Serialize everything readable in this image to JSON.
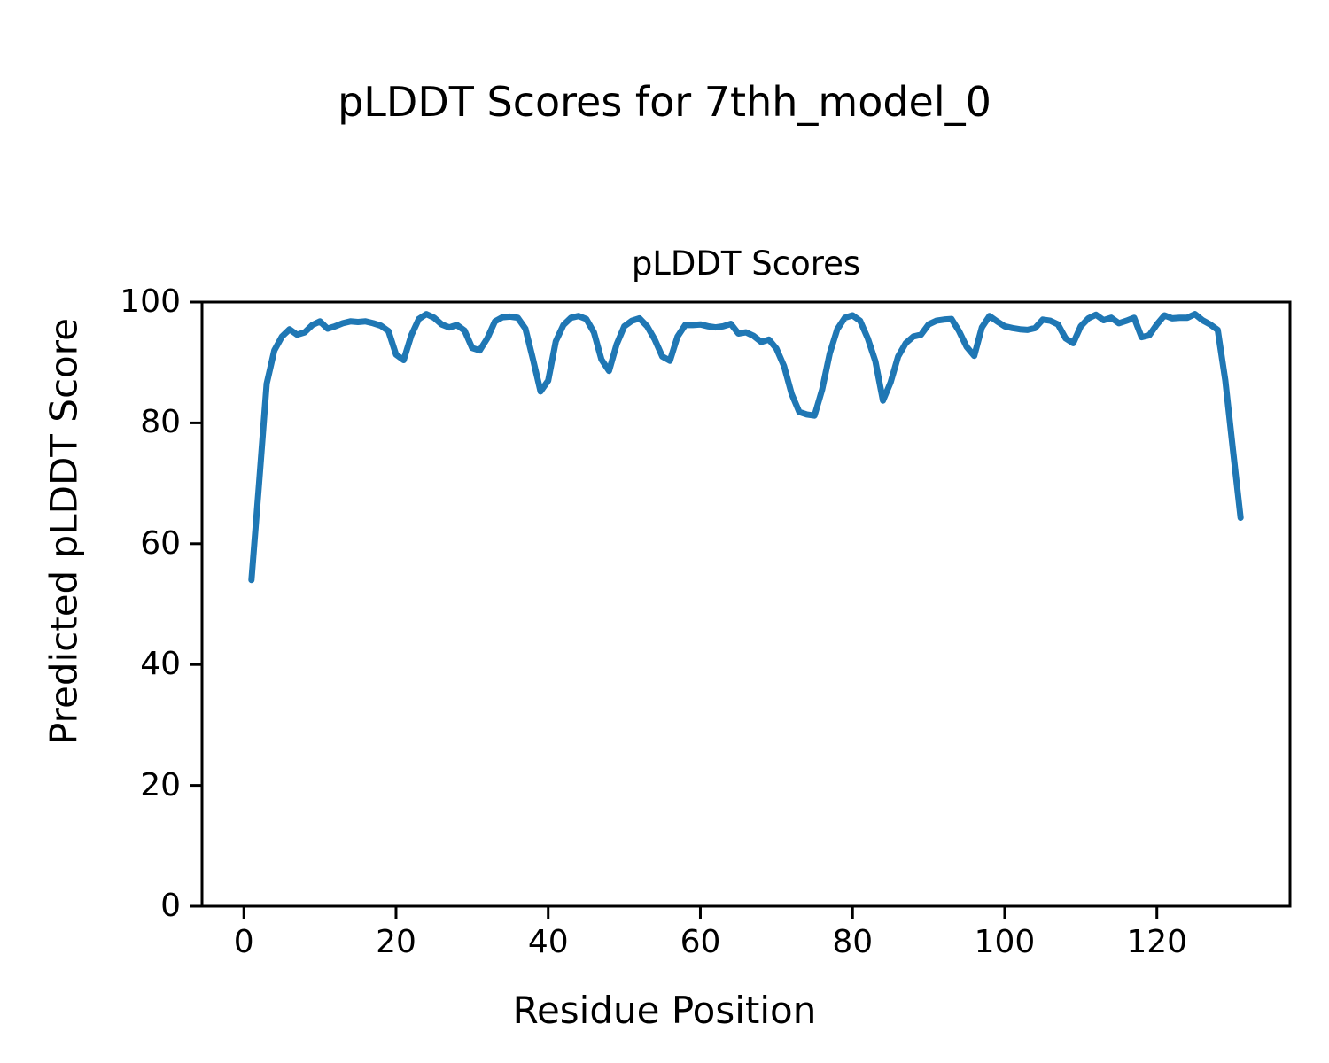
{
  "figure": {
    "title": "pLDDT Scores for 7thh_model_0"
  },
  "chart_data": {
    "type": "line",
    "title": "pLDDT Scores",
    "xlabel": "Residue Position",
    "ylabel": "Predicted pLDDT Score",
    "xlim": [
      -5.5,
      137.5
    ],
    "ylim": [
      0,
      100
    ],
    "xticks": [
      0,
      20,
      40,
      60,
      80,
      100,
      120
    ],
    "yticks": [
      0,
      20,
      40,
      60,
      80,
      100
    ],
    "grid": false,
    "legend": null,
    "line_color": "#1f77b4",
    "x": [
      1,
      2,
      3,
      4,
      5,
      6,
      7,
      8,
      9,
      10,
      11,
      12,
      13,
      14,
      15,
      16,
      17,
      18,
      19,
      20,
      21,
      22,
      23,
      24,
      25,
      26,
      27,
      28,
      29,
      30,
      31,
      32,
      33,
      34,
      35,
      36,
      37,
      38,
      39,
      40,
      41,
      42,
      43,
      44,
      45,
      46,
      47,
      48,
      49,
      50,
      51,
      52,
      53,
      54,
      55,
      56,
      57,
      58,
      59,
      60,
      61,
      62,
      63,
      64,
      65,
      66,
      67,
      68,
      69,
      70,
      71,
      72,
      73,
      74,
      75,
      76,
      77,
      78,
      79,
      80,
      81,
      82,
      83,
      84,
      85,
      86,
      87,
      88,
      89,
      90,
      91,
      92,
      93,
      94,
      95,
      96,
      97,
      98,
      99,
      100,
      101,
      102,
      103,
      104,
      105,
      106,
      107,
      108,
      109,
      110,
      111,
      112,
      113,
      114,
      115,
      116,
      117,
      118,
      119,
      120,
      121,
      122,
      123,
      124,
      125,
      126,
      127,
      128,
      129,
      130,
      131
    ],
    "values": [
      54.0,
      70.0,
      86.5,
      92.0,
      94.3,
      95.5,
      94.6,
      95.0,
      96.2,
      96.8,
      95.6,
      96.0,
      96.5,
      96.8,
      96.7,
      96.8,
      96.5,
      96.1,
      95.2,
      91.3,
      90.4,
      94.5,
      97.2,
      98.0,
      97.4,
      96.3,
      95.8,
      96.2,
      95.3,
      92.4,
      92.0,
      94.0,
      96.8,
      97.5,
      97.6,
      97.4,
      95.6,
      90.5,
      85.2,
      87.0,
      93.5,
      96.2,
      97.4,
      97.7,
      97.2,
      95.0,
      90.5,
      88.6,
      93.0,
      96.0,
      96.9,
      97.3,
      96.0,
      93.8,
      91.0,
      90.3,
      94.3,
      96.2,
      96.2,
      96.3,
      96.0,
      95.8,
      96.0,
      96.4,
      94.8,
      95.0,
      94.4,
      93.4,
      93.8,
      92.3,
      89.4,
      84.8,
      81.8,
      81.4,
      81.2,
      85.5,
      91.5,
      95.5,
      97.4,
      97.8,
      96.9,
      94.0,
      90.2,
      83.7,
      86.7,
      91.0,
      93.2,
      94.3,
      94.6,
      96.3,
      96.9,
      97.1,
      97.2,
      95.2,
      92.6,
      91.1,
      95.8,
      97.7,
      96.8,
      96.0,
      95.7,
      95.5,
      95.4,
      95.7,
      97.1,
      96.9,
      96.3,
      94.0,
      93.2,
      96.0,
      97.3,
      97.9,
      97.0,
      97.4,
      96.5,
      96.9,
      97.4,
      94.2,
      94.5,
      96.3,
      97.8,
      97.3,
      97.4,
      97.4,
      98.0,
      97.0,
      96.3,
      95.4,
      87.0,
      75.5,
      64.3
    ]
  }
}
